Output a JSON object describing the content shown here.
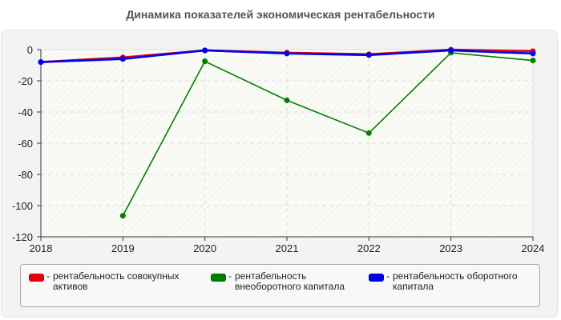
{
  "title": "Динамика показателей экономическая рентабельности",
  "legend": [
    {
      "label": "рентабельность совокупных активов",
      "color": "#e8000b"
    },
    {
      "label": "рентабельность внеоборотного капитала",
      "color": "#008000"
    },
    {
      "label": "рентабельность оборотного капитала",
      "color": "#0000ee"
    }
  ],
  "legend_dash": "-",
  "chart_data": {
    "type": "line",
    "title": "Динамика показателей экономическая рентабельности",
    "xlabel": "",
    "ylabel": "",
    "x": [
      "2018",
      "2019",
      "2020",
      "2021",
      "2022",
      "2023",
      "2024"
    ],
    "yticks": [
      "0",
      "-20",
      "-40",
      "-60",
      "-80",
      "-100",
      "-120"
    ],
    "ylim": [
      -120,
      0
    ],
    "grid": true,
    "legend_position": "bottom",
    "series": [
      {
        "name": "рентабельность совокупных активов",
        "color": "#e8000b",
        "values": [
          -8,
          -5,
          -0.5,
          -2,
          -3,
          0,
          -1
        ]
      },
      {
        "name": "рентабельность внеоборотного капитала",
        "color": "#008000",
        "values": [
          null,
          -106.5,
          -7.5,
          -32.5,
          -53.5,
          -2,
          -7
        ]
      },
      {
        "name": "рентабельность оборотного капитала",
        "color": "#0000ee",
        "values": [
          -8,
          -6,
          -0.5,
          -2.5,
          -3.5,
          -0.5,
          -2.5
        ]
      }
    ]
  }
}
